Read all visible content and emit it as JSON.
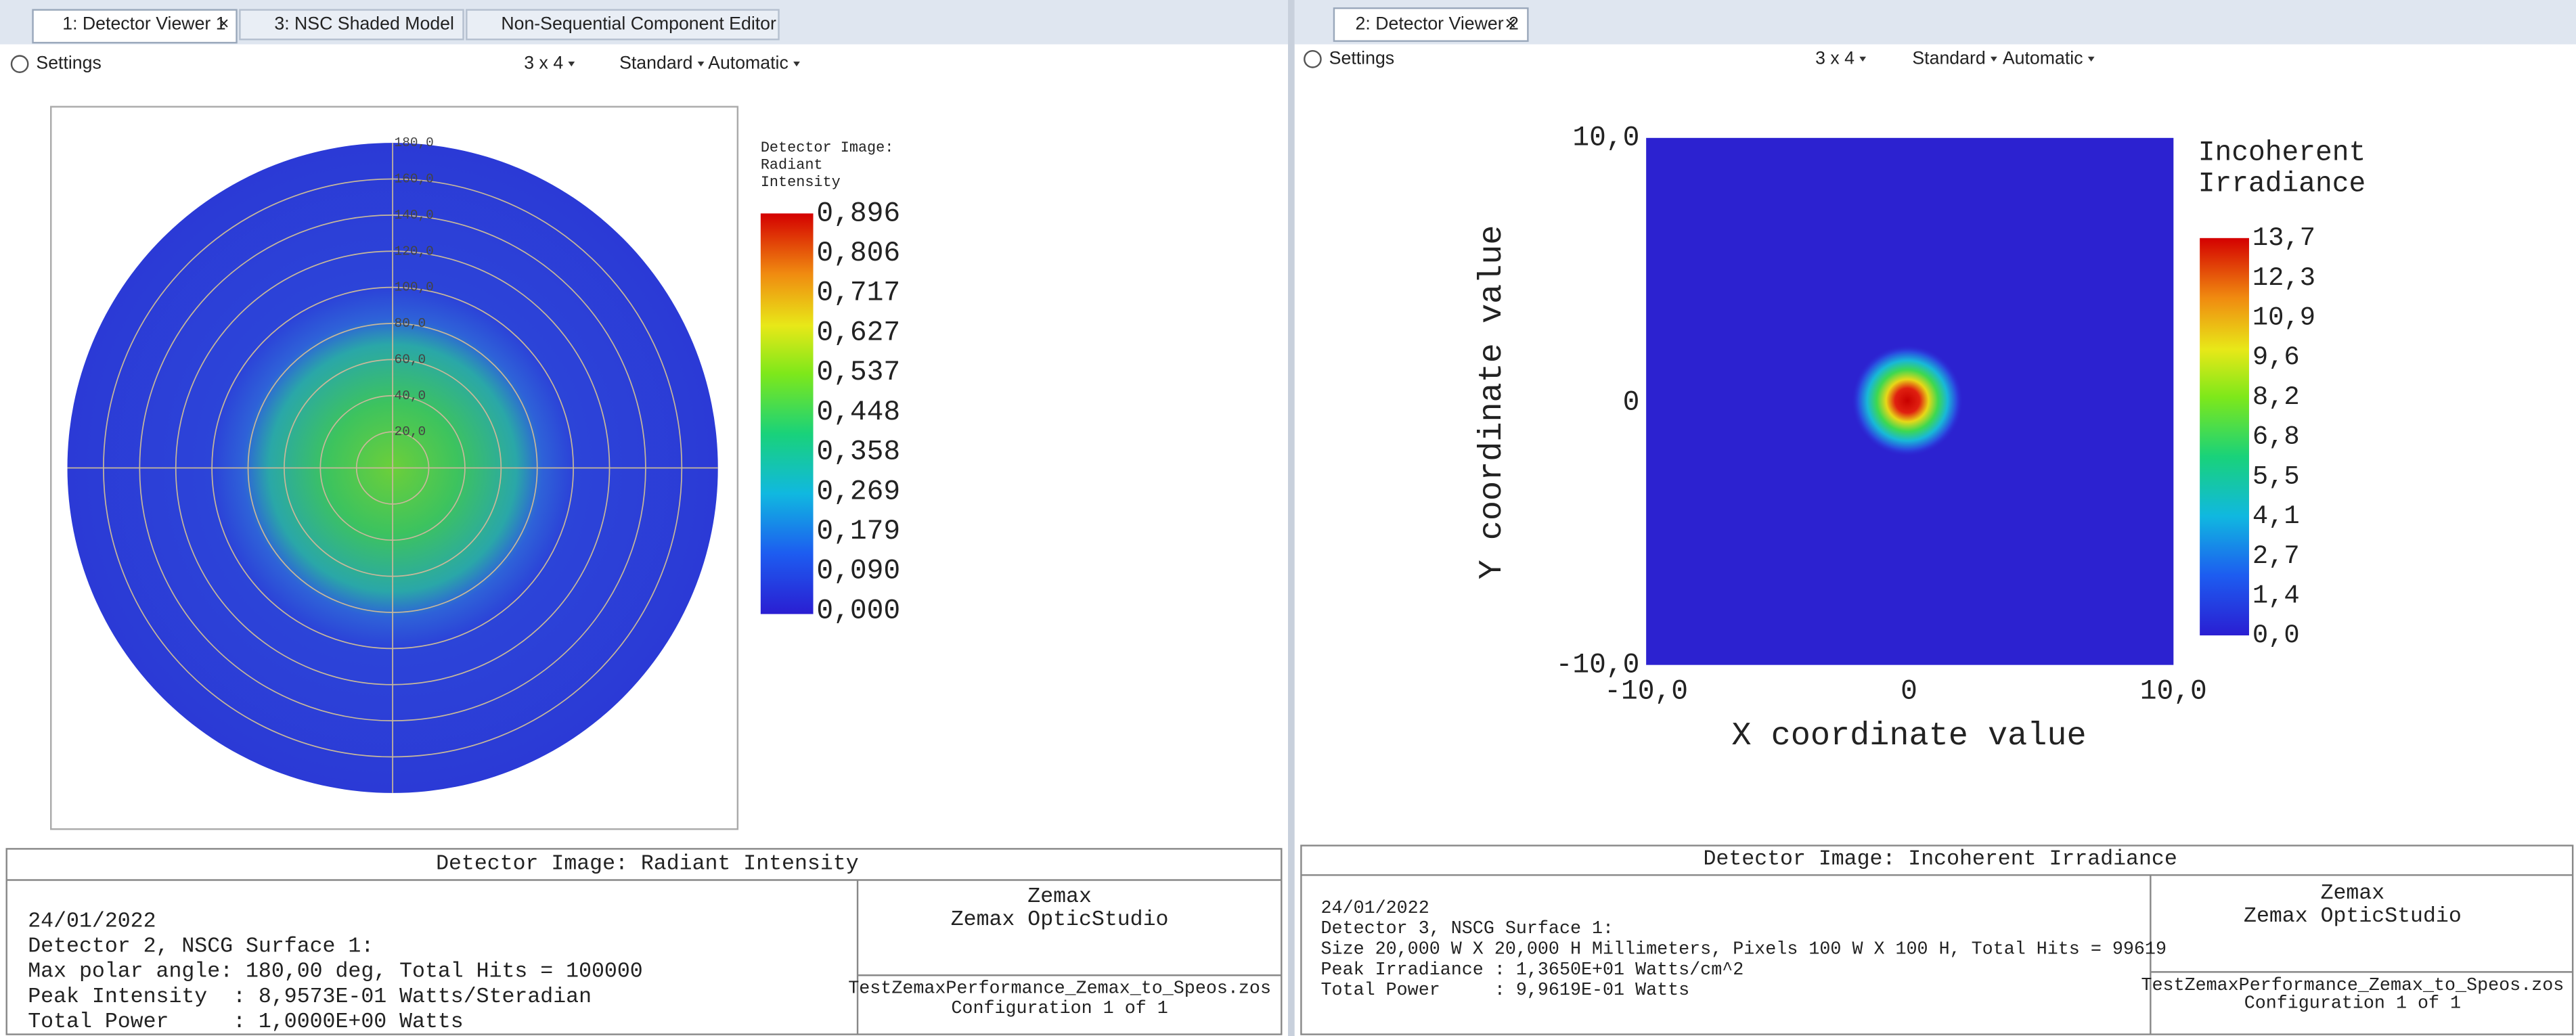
{
  "left_window": {
    "tabs": [
      "1: Detector Viewer 1",
      "3: NSC Shaded Model",
      "Non-Sequential Component Editor"
    ],
    "toolbar": {
      "settings": "Settings",
      "layout": "3 x 4",
      "style": "Standard",
      "scale": "Automatic"
    },
    "plot": {
      "polar_labels": [
        "180,0",
        "160,0",
        "140,0",
        "120,0",
        "100,0",
        "80,0",
        "60,0",
        "40,0",
        "20,0"
      ],
      "legend_title": [
        "Detector Image:",
        "Radiant",
        "Intensity"
      ],
      "legend_labels": [
        "0,896",
        "0,806",
        "0,717",
        "0,627",
        "0,537",
        "0,448",
        "0,358",
        "0,269",
        "0,179",
        "0,090",
        "0,000"
      ]
    },
    "info": {
      "title": "Detector Image: Radiant Intensity",
      "lines": [
        "24/01/2022",
        "Detector 2, NSCG Surface 1:",
        "Max polar angle: 180,00 deg, Total Hits = 100000",
        "Peak Intensity  : 8,9573E-01 Watts/Steradian",
        "Total Power     : 1,0000E+00 Watts"
      ],
      "company": "Zemax",
      "product": "Zemax OpticStudio",
      "file": "TestZemaxPerformance_Zemax_to_Speos.zos",
      "config": "Configuration 1 of 1"
    }
  },
  "right_window": {
    "tabs": [
      "2: Detector Viewer 2"
    ],
    "toolbar": {
      "settings": "Settings",
      "layout": "3 x 4",
      "style": "Standard",
      "scale": "Automatic"
    },
    "plot": {
      "x_label": "X coordinate value",
      "y_label": "Y coordinate value",
      "x_ticks": [
        "-10,0",
        "0",
        "10,0"
      ],
      "y_ticks": [
        "10,0",
        "0",
        "-10,0"
      ],
      "legend_title": [
        "Incoherent",
        "Irradiance"
      ],
      "legend_labels": [
        "13,7",
        "12,3",
        "10,9",
        "9,6",
        "8,2",
        "6,8",
        "5,5",
        "4,1",
        "2,7",
        "1,4",
        "0,0"
      ]
    },
    "info": {
      "title": "Detector Image: Incoherent Irradiance",
      "lines": [
        "24/01/2022",
        "Detector 3, NSCG Surface 1:",
        "Size 20,000 W X 20,000 H Millimeters, Pixels 100 W X 100 H, Total Hits = 99619",
        "Peak Irradiance : 1,3650E+01 Watts/cm^2",
        "Total Power     : 9,9619E-01 Watts"
      ],
      "company": "Zemax",
      "product": "Zemax OpticStudio",
      "file": "TestZemaxPerformance_Zemax_to_Speos.zos",
      "config": "Configuration 1 of 1"
    }
  }
}
